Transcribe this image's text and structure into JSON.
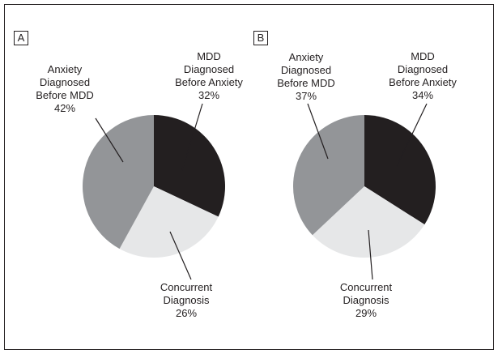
{
  "chart_data": [
    {
      "type": "pie",
      "title": "A",
      "categories": [
        "MDD\nDiagnosed\nBefore Anxiety",
        "Concurrent\nDiagnosis",
        "Anxiety\nDiagnosed\nBefore MDD"
      ],
      "values": [
        32,
        26,
        42
      ],
      "value_labels": [
        "32%",
        "26%",
        "42%"
      ],
      "colors": [
        "#231f20",
        "#e6e7e8",
        "#939598"
      ]
    },
    {
      "type": "pie",
      "title": "B",
      "categories": [
        "MDD\nDiagnosed\nBefore Anxiety",
        "Concurrent\nDiagnosis",
        "Anxiety\nDiagnosed\nBefore MDD"
      ],
      "values": [
        34,
        29,
        37
      ],
      "value_labels": [
        "34%",
        "29%",
        "37%"
      ],
      "colors": [
        "#231f20",
        "#e6e7e8",
        "#939598"
      ]
    }
  ]
}
